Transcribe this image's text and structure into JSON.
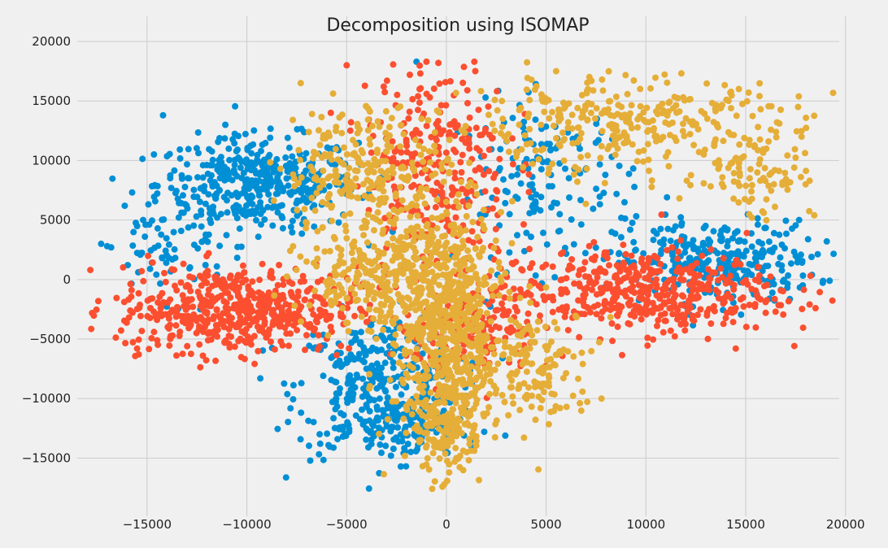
{
  "chart_data": {
    "type": "scatter",
    "title": "Decomposition using ISOMAP",
    "xlabel": "",
    "ylabel": "",
    "xlim": [
      -18500,
      20500
    ],
    "ylim": [
      -19000,
      20000
    ],
    "xticks": [
      -15000,
      -10000,
      -5000,
      0,
      5000,
      10000,
      15000,
      20000
    ],
    "yticks": [
      20000,
      15000,
      10000,
      5000,
      0,
      -5000,
      -10000,
      -15000
    ],
    "xtick_labels": [
      "−15000",
      "−10000",
      "−5000",
      "0",
      "5000",
      "10000",
      "15000",
      "20000"
    ],
    "ytick_labels": [
      "20000",
      "15000",
      "10000",
      "5000",
      "0",
      "−5000",
      "−10000",
      "−15000"
    ],
    "grid": true,
    "style": "fivethirtyeight",
    "series": [
      {
        "color": "#008fd5",
        "clusters": [
          {
            "cx": -9500,
            "cy": 8000,
            "sx": 2500,
            "sy": 2000,
            "n": 420
          },
          {
            "cx": -3500,
            "cy": -9000,
            "sx": 2000,
            "sy": 3000,
            "n": 330
          },
          {
            "cx": 13500,
            "cy": 1500,
            "sx": 2500,
            "sy": 1700,
            "n": 300
          },
          {
            "cx": 5000,
            "cy": 8000,
            "sx": 2200,
            "sy": 3500,
            "n": 160
          },
          {
            "cx": -14000,
            "cy": 2500,
            "sx": 1500,
            "sy": 2000,
            "n": 60
          },
          {
            "cx": -1500,
            "cy": -12500,
            "sx": 1500,
            "sy": 1500,
            "n": 90
          }
        ],
        "points": [
          [
            -17300,
            3000
          ],
          [
            -17000,
            2800
          ],
          [
            -16800,
            2700
          ],
          [
            -14200,
            13800
          ],
          [
            -15200,
            5000
          ],
          [
            18300,
            1900
          ],
          [
            17600,
            1800
          ],
          [
            -1500,
            18300
          ]
        ]
      },
      {
        "color": "#fc4f30",
        "clusters": [
          {
            "cx": -10500,
            "cy": -2500,
            "sx": 3000,
            "sy": 1800,
            "n": 560
          },
          {
            "cx": 9500,
            "cy": -1000,
            "sx": 3500,
            "sy": 1800,
            "n": 480
          },
          {
            "cx": -500,
            "cy": 10000,
            "sx": 1800,
            "sy": 4500,
            "n": 300
          },
          {
            "cx": 1500,
            "cy": -4500,
            "sx": 1500,
            "sy": 2000,
            "n": 160
          }
        ],
        "points": [
          [
            -15500,
            -5800
          ],
          [
            18500,
            -2400
          ],
          [
            16500,
            -2700
          ],
          [
            16000,
            -2800
          ],
          [
            14500,
            -5800
          ],
          [
            -5000,
            18000
          ],
          [
            -1000,
            18300
          ],
          [
            -400,
            18200
          ]
        ]
      },
      {
        "color": "#e5ae38",
        "clusters": [
          {
            "cx": 0,
            "cy": -3500,
            "sx": 1400,
            "sy": 4800,
            "n": 620
          },
          {
            "cx": -3000,
            "cy": 0,
            "sx": 2200,
            "sy": 2000,
            "n": 260
          },
          {
            "cx": -4000,
            "cy": 9000,
            "sx": 2000,
            "sy": 2800,
            "n": 260
          },
          {
            "cx": 8500,
            "cy": 13000,
            "sx": 4500,
            "sy": 2000,
            "n": 330
          },
          {
            "cx": 15500,
            "cy": 9000,
            "sx": 1500,
            "sy": 2000,
            "n": 80
          },
          {
            "cx": 4500,
            "cy": -7500,
            "sx": 1500,
            "sy": 2500,
            "n": 140
          },
          {
            "cx": 0,
            "cy": -12000,
            "sx": 900,
            "sy": 2000,
            "n": 170
          }
        ],
        "points": [
          [
            -100,
            -17200
          ],
          [
            -200,
            -17400
          ],
          [
            17800,
            12000
          ],
          [
            18200,
            8300
          ],
          [
            18000,
            8000
          ],
          [
            5500,
            17500
          ],
          [
            7800,
            16800
          ],
          [
            -7300,
            16500
          ]
        ]
      }
    ]
  }
}
